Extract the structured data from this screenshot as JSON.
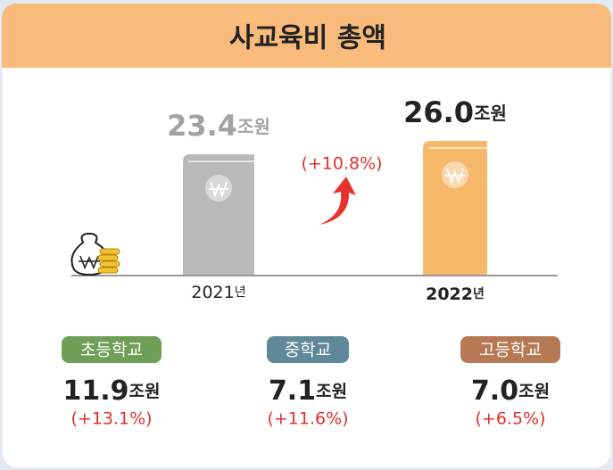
{
  "header": {
    "title": "사교육비 총액"
  },
  "chart_data": {
    "type": "bar",
    "categories": [
      "2021년",
      "2022년"
    ],
    "values": [
      23.4,
      26.0
    ],
    "value_labels": [
      "23.4조원",
      "26.0조원"
    ],
    "colors": [
      "#b9b9b9",
      "#f6b86b"
    ],
    "annotation": "(+10.8%)"
  },
  "breakdown": [
    {
      "name": "초등학교",
      "amount": "11.9조원",
      "change": "(+13.1%)",
      "color": "#6f9f57"
    },
    {
      "name": "중학교",
      "amount": "7.1조원",
      "change": "(+11.6%)",
      "color": "#5f8898"
    },
    {
      "name": "고등학교",
      "amount": "7.0조원",
      "change": "(+6.5%)",
      "color": "#b67953"
    }
  ]
}
